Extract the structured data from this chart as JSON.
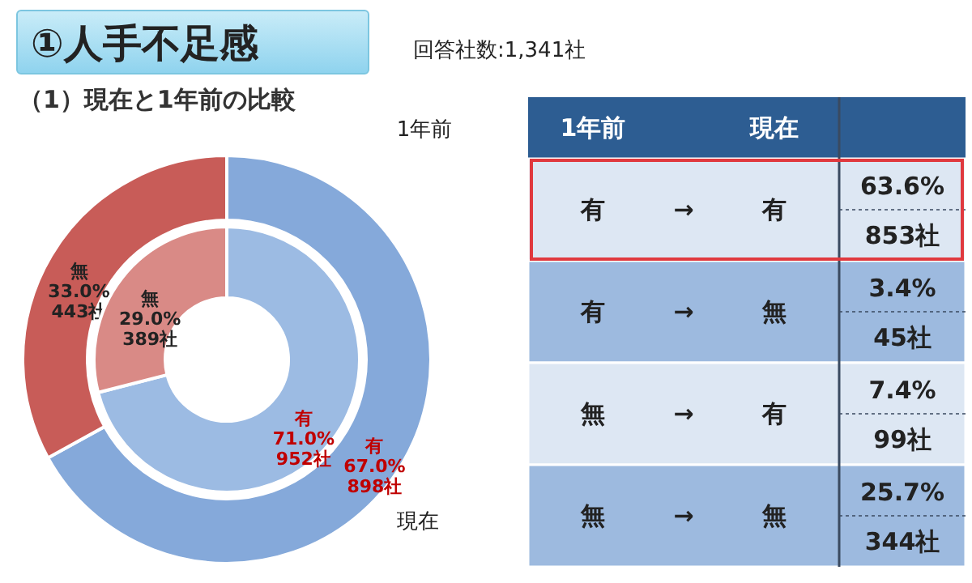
{
  "chart_data": [
    {
      "type": "donut",
      "title": "①人手不足感",
      "subtitle": "（1）現在と1年前の比較",
      "annotations": [
        "回答社数:1,341社"
      ],
      "categories": [
        "有",
        "無"
      ],
      "series": [
        {
          "name": "1年前",
          "colors": [
            "#85a9da",
            "#c85c58"
          ],
          "values": [
            67.0,
            33.0
          ],
          "value_labels": [
            "67.0%\n898社",
            "33.0%\n443社"
          ]
        },
        {
          "name": "現在",
          "colors": [
            "#9cbbe3",
            "#d98a86"
          ],
          "values": [
            71.0,
            29.0
          ],
          "value_labels": [
            "71.0%\n952社",
            "29.0%\n389社"
          ]
        }
      ]
    },
    {
      "type": "other",
      "annotations": [
        "1年前",
        "現在",
        "有",
        "→",
        "有",
        "63.6%",
        "853社",
        "有",
        "→",
        "無",
        "3.4%",
        "45社",
        "無",
        "→",
        "有",
        "7.4%",
        "99社",
        "無",
        "→",
        "無",
        "25.7%",
        "344社"
      ]
    }
  ]
}
